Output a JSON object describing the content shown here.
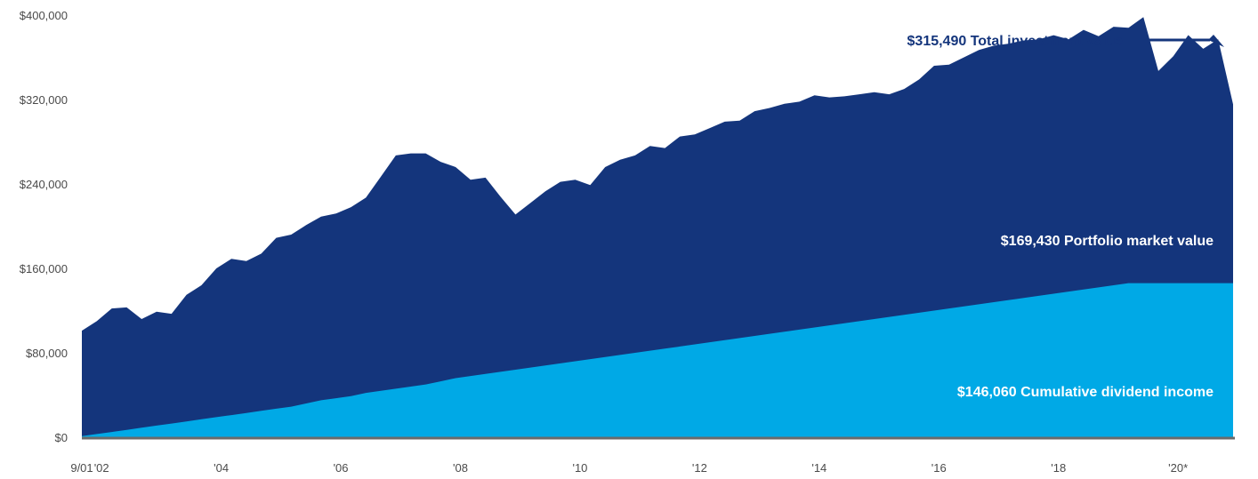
{
  "chart_data": {
    "type": "area",
    "stacked": true,
    "ylim": [
      0,
      400000
    ],
    "y_ticks": [
      0,
      80000,
      160000,
      240000,
      320000,
      400000
    ],
    "y_tick_labels": [
      "$0",
      "$80,000",
      "$160,000",
      "$240,000",
      "$320,000",
      "$400,000"
    ],
    "x_ticks": [
      2001.67,
      2002,
      2004,
      2006,
      2008,
      2010,
      2012,
      2014,
      2016,
      2018,
      2020
    ],
    "x_tick_labels": [
      "9/01",
      "'02",
      "'04",
      "'06",
      "'08",
      "'10",
      "'12",
      "'14",
      "'16",
      "'18",
      "'20*"
    ],
    "colors": {
      "total": "#14357c",
      "dividend": "#00a9e6",
      "axis": "#6b6b6b",
      "arrow": "#14357c"
    },
    "x": [
      2001.67,
      2001.92,
      2002.17,
      2002.42,
      2002.67,
      2002.92,
      2003.17,
      2003.42,
      2003.67,
      2003.92,
      2004.17,
      2004.42,
      2004.67,
      2004.92,
      2005.17,
      2005.42,
      2005.67,
      2005.92,
      2006.17,
      2006.42,
      2006.67,
      2006.92,
      2007.17,
      2007.42,
      2007.67,
      2007.92,
      2008.17,
      2008.42,
      2008.67,
      2008.92,
      2009.17,
      2009.42,
      2009.67,
      2009.92,
      2010.17,
      2010.42,
      2010.67,
      2010.92,
      2011.17,
      2011.42,
      2011.67,
      2011.92,
      2012.17,
      2012.42,
      2012.67,
      2012.92,
      2013.17,
      2013.42,
      2013.67,
      2013.92,
      2014.17,
      2014.42,
      2014.67,
      2014.92,
      2015.17,
      2015.42,
      2015.67,
      2015.92,
      2016.17,
      2016.42,
      2016.67,
      2016.92,
      2017.17,
      2017.42,
      2017.67,
      2017.92,
      2018.17,
      2018.42,
      2018.67,
      2018.92,
      2019.17,
      2019.42,
      2019.67,
      2019.92,
      2020.17,
      2020.42,
      2020.67,
      2020.92
    ],
    "series": [
      {
        "name": "Portfolio market value",
        "values": [
          100000,
          107000,
          117000,
          116000,
          103000,
          108000,
          104000,
          120000,
          127000,
          141000,
          148000,
          144000,
          149000,
          162000,
          163000,
          169000,
          174000,
          175000,
          179000,
          185000,
          203000,
          221000,
          221000,
          219000,
          208000,
          200000,
          186000,
          186000,
          166000,
          147000,
          156000,
          165000,
          172000,
          172000,
          165000,
          180000,
          185000,
          187000,
          194000,
          190000,
          199000,
          199000,
          203000,
          207000,
          206000,
          213000,
          214000,
          216000,
          216000,
          220000,
          216000,
          215000,
          215000,
          215000,
          211000,
          214000,
          221000,
          232000,
          231000,
          236000,
          241000,
          243000,
          243000,
          244000,
          243000,
          245000,
          239000,
          246000,
          238000,
          245000,
          242000,
          252000,
          201000,
          215000,
          235000,
          222000,
          231000,
          169430
        ],
        "note": "stacked on top of cumulative dividend income"
      },
      {
        "name": "Cumulative dividend income",
        "values": [
          1000,
          3000,
          5000,
          7000,
          9000,
          11000,
          13000,
          15000,
          17000,
          19000,
          21000,
          23000,
          25000,
          27000,
          29000,
          32000,
          35000,
          37000,
          39000,
          42000,
          44000,
          46000,
          48000,
          50000,
          53000,
          56000,
          58000,
          60000,
          62000,
          64000,
          66000,
          68000,
          70000,
          72000,
          74000,
          76000,
          78000,
          80000,
          82000,
          84000,
          86000,
          88000,
          90000,
          92000,
          94000,
          96000,
          98000,
          100000,
          102000,
          104000,
          106000,
          108000,
          110000,
          112000,
          114000,
          116000,
          118000,
          120000,
          122000,
          124000,
          126000,
          128000,
          130000,
          132000,
          134000,
          136000,
          138000,
          140000,
          142000,
          144000,
          146000,
          146060,
          146060,
          146060,
          146060,
          146060,
          146060,
          146060
        ]
      }
    ],
    "annotations": {
      "total": "$315,490 Total investment value",
      "portfolio": "$169,430 Portfolio market value",
      "dividend": "$146,060 Cumulative dividend income"
    }
  }
}
